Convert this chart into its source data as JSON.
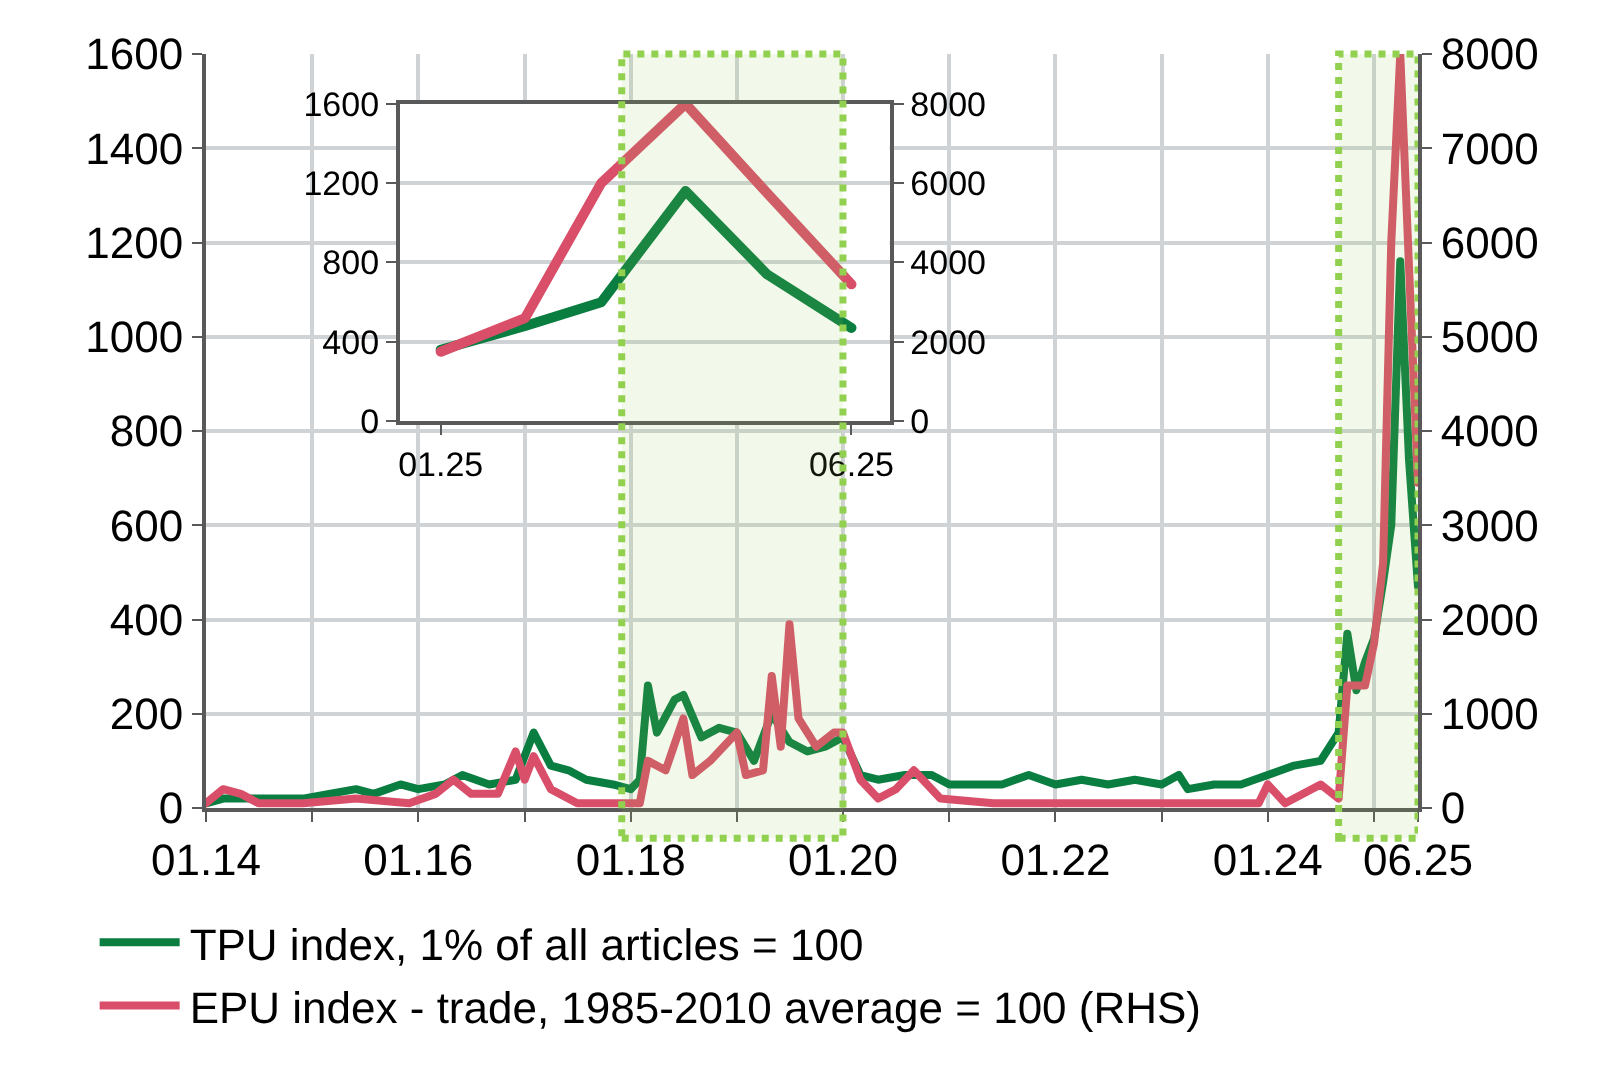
{
  "chart_data": [
    {
      "type": "line",
      "xlim": [
        "2014-01",
        "2025-06"
      ],
      "xticks": [
        {
          "value": "2014-01",
          "label": "01.14"
        },
        {
          "value": "2015-01",
          "label": null
        },
        {
          "value": "2016-01",
          "label": "01.16"
        },
        {
          "value": "2017-01",
          "label": null
        },
        {
          "value": "2018-01",
          "label": "01.18"
        },
        {
          "value": "2019-01",
          "label": null
        },
        {
          "value": "2020-01",
          "label": "01.20"
        },
        {
          "value": "2021-01",
          "label": null
        },
        {
          "value": "2022-01",
          "label": "01.22"
        },
        {
          "value": "2023-01",
          "label": null
        },
        {
          "value": "2024-01",
          "label": "01.24"
        },
        {
          "value": "2025-01",
          "label": null
        },
        {
          "value": "2025-06",
          "label": "06.25"
        }
      ],
      "ylim": [
        0,
        1600
      ],
      "yticks": [
        0,
        200,
        400,
        600,
        800,
        1000,
        1200,
        1400,
        1600
      ],
      "y2lim": [
        0,
        8000
      ],
      "y2ticks": [
        0,
        1000,
        2000,
        3000,
        4000,
        5000,
        6000,
        7000,
        8000
      ],
      "grid": true,
      "legend": "bottom",
      "bands": [
        {
          "axis": "x",
          "from": "2017-12",
          "to": "2020-01",
          "color": "#92d050"
        },
        {
          "axis": "x",
          "from": "2024-09",
          "to": "2025-06",
          "color": "#92d050"
        }
      ],
      "series": [
        {
          "name": "TPU index, 1% of all articles = 100",
          "color": "#0a7d40",
          "x": [
            "2014-01",
            "2014-03",
            "2014-06",
            "2014-09",
            "2014-12",
            "2015-03",
            "2015-06",
            "2015-08",
            "2015-11",
            "2016-01",
            "2016-04",
            "2016-06",
            "2016-09",
            "2016-12",
            "2017-02",
            "2017-04",
            "2017-06",
            "2017-08",
            "2017-11",
            "2018-01",
            "2018-02",
            "2018-03",
            "2018-04",
            "2018-06",
            "2018-07",
            "2018-09",
            "2018-11",
            "2019-01",
            "2019-03",
            "2019-05",
            "2019-07",
            "2019-09",
            "2019-11",
            "2020-01",
            "2020-03",
            "2020-05",
            "2020-08",
            "2020-11",
            "2021-01",
            "2021-04",
            "2021-07",
            "2021-10",
            "2022-01",
            "2022-04",
            "2022-07",
            "2022-10",
            "2023-01",
            "2023-03",
            "2023-04",
            "2023-07",
            "2023-10",
            "2024-01",
            "2024-04",
            "2024-07",
            "2024-09",
            "2024-10",
            "2024-11",
            "2024-12",
            "2025-01",
            "2025-02",
            "2025-03",
            "2025-04",
            "2025-05",
            "2025-06"
          ],
          "values": [
            10,
            20,
            20,
            20,
            20,
            30,
            40,
            30,
            50,
            40,
            50,
            70,
            50,
            60,
            160,
            90,
            80,
            60,
            50,
            40,
            60,
            260,
            160,
            230,
            240,
            150,
            170,
            160,
            100,
            200,
            140,
            120,
            130,
            150,
            70,
            60,
            70,
            70,
            50,
            50,
            50,
            70,
            50,
            60,
            50,
            60,
            50,
            70,
            40,
            50,
            50,
            70,
            90,
            100,
            160,
            370,
            250,
            310,
            360,
            480,
            600,
            1160,
            740,
            470
          ]
        },
        {
          "name": "EPU index - trade, 1985-2010 average = 100 (RHS)",
          "color": "#d94f6a",
          "axis": "y2",
          "x": [
            "2014-01",
            "2014-03",
            "2014-05",
            "2014-07",
            "2014-12",
            "2015-06",
            "2015-12",
            "2016-03",
            "2016-05",
            "2016-07",
            "2016-10",
            "2016-12",
            "2017-01",
            "2017-02",
            "2017-04",
            "2017-07",
            "2017-12",
            "2018-02",
            "2018-03",
            "2018-05",
            "2018-07",
            "2018-08",
            "2018-10",
            "2019-01",
            "2019-02",
            "2019-04",
            "2019-05",
            "2019-06",
            "2019-07",
            "2019-08",
            "2019-10",
            "2019-12",
            "2020-01",
            "2020-03",
            "2020-05",
            "2020-07",
            "2020-09",
            "2020-12",
            "2021-06",
            "2022-01",
            "2022-06",
            "2023-01",
            "2023-06",
            "2023-12",
            "2024-01",
            "2024-03",
            "2024-07",
            "2024-09",
            "2024-10",
            "2024-12",
            "2025-01",
            "2025-02",
            "2025-03",
            "2025-04",
            "2025-05",
            "2025-06"
          ],
          "values": [
            50,
            200,
            150,
            50,
            50,
            100,
            50,
            150,
            300,
            150,
            150,
            600,
            300,
            550,
            200,
            50,
            50,
            50,
            500,
            400,
            950,
            350,
            500,
            800,
            350,
            400,
            1400,
            650,
            1950,
            950,
            650,
            800,
            800,
            300,
            100,
            200,
            400,
            100,
            50,
            50,
            50,
            50,
            50,
            50,
            250,
            50,
            250,
            100,
            1300,
            1300,
            1750,
            2600,
            6000,
            8000,
            5750,
            3450
          ]
        }
      ]
    },
    {
      "type": "line",
      "xlim": [
        "2024-12-17",
        "2025-06-15"
      ],
      "xticks": [
        {
          "value": "2025-01",
          "label": "01.25"
        },
        {
          "value": "2025-06",
          "label": "06.25"
        }
      ],
      "ylim": [
        0,
        1600
      ],
      "yticks": [
        0,
        400,
        800,
        1200,
        1600
      ],
      "y2lim": [
        0,
        8000
      ],
      "y2ticks": [
        0,
        2000,
        4000,
        6000,
        8000
      ],
      "grid": "y",
      "series": [
        {
          "color": "#0a7d40",
          "x": [
            "2025-01",
            "2025-02",
            "2025-03",
            "2025-04",
            "2025-05",
            "2025-06"
          ],
          "values": [
            360,
            480,
            600,
            1160,
            740,
            470
          ]
        },
        {
          "color": "#d94f6a",
          "axis": "y2",
          "x": [
            "2025-01",
            "2025-02",
            "2025-03",
            "2025-04",
            "2025-05",
            "2025-06"
          ],
          "values": [
            1750,
            2600,
            6000,
            8000,
            5750,
            3450
          ]
        }
      ]
    }
  ]
}
